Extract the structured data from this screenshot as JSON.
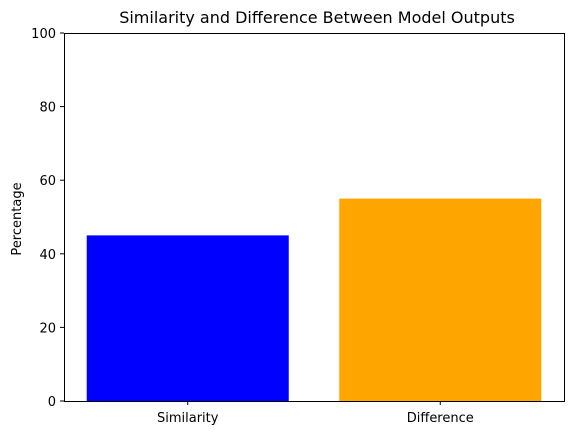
{
  "chart_data": {
    "type": "bar",
    "title": "Similarity and Difference Between Model Outputs",
    "xlabel": "",
    "ylabel": "Percentage",
    "categories": [
      "Similarity",
      "Difference"
    ],
    "values": [
      45,
      55
    ],
    "colors": [
      "#0000ff",
      "#ffa500"
    ],
    "ylim": [
      0,
      100
    ],
    "yticks": [
      0,
      20,
      40,
      60,
      80,
      100
    ],
    "grid": false
  }
}
